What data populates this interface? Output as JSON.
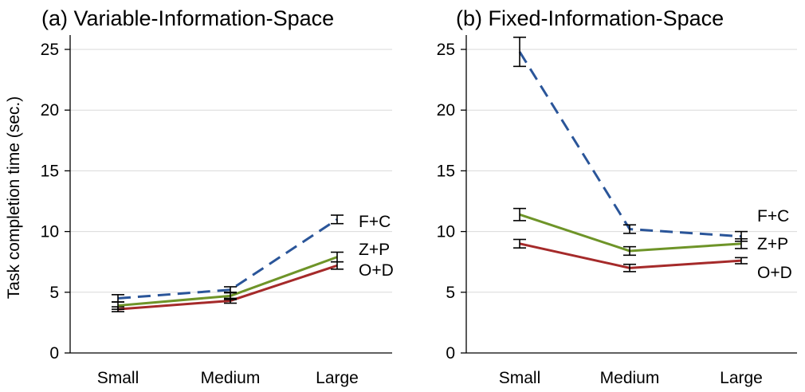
{
  "chart_data": [
    {
      "type": "line",
      "title": "(a) Variable-Information-Space",
      "ylabel": "Task completion time (sec.)",
      "xlabel": "",
      "categories": [
        "Small",
        "Medium",
        "Large"
      ],
      "ylim": [
        0,
        26.5
      ],
      "yticks": [
        0,
        5,
        10,
        15,
        20,
        25
      ],
      "grid": true,
      "series": [
        {
          "name": "F+C",
          "color": "#2a5599",
          "dash": "dashed",
          "values": [
            4.5,
            5.2,
            11.0
          ],
          "err": [
            0.3,
            0.25,
            0.35
          ]
        },
        {
          "name": "Z+P",
          "color": "#6e9428",
          "dash": "solid",
          "values": [
            3.9,
            4.7,
            7.9
          ],
          "err": [
            0.3,
            0.3,
            0.4
          ]
        },
        {
          "name": "O+D",
          "color": "#a52a2a",
          "dash": "solid",
          "values": [
            3.6,
            4.3,
            7.2
          ],
          "err": [
            0.2,
            0.2,
            0.3
          ]
        }
      ]
    },
    {
      "type": "line",
      "title": "(b) Fixed-Information-Space",
      "ylabel": "",
      "xlabel": "",
      "categories": [
        "Small",
        "Medium",
        "Large"
      ],
      "ylim": [
        0,
        26.5
      ],
      "yticks": [
        0,
        5,
        10,
        15,
        20,
        25
      ],
      "grid": true,
      "series": [
        {
          "name": "F+C",
          "color": "#2a5599",
          "dash": "dashed",
          "values": [
            24.8,
            10.2,
            9.6
          ],
          "err": [
            1.2,
            0.35,
            0.4
          ]
        },
        {
          "name": "Z+P",
          "color": "#6e9428",
          "dash": "solid",
          "values": [
            11.4,
            8.4,
            9.0
          ],
          "err": [
            0.5,
            0.35,
            0.4
          ]
        },
        {
          "name": "O+D",
          "color": "#a52a2a",
          "dash": "solid",
          "values": [
            9.0,
            7.0,
            7.6
          ],
          "err": [
            0.35,
            0.3,
            0.25
          ]
        }
      ]
    }
  ]
}
